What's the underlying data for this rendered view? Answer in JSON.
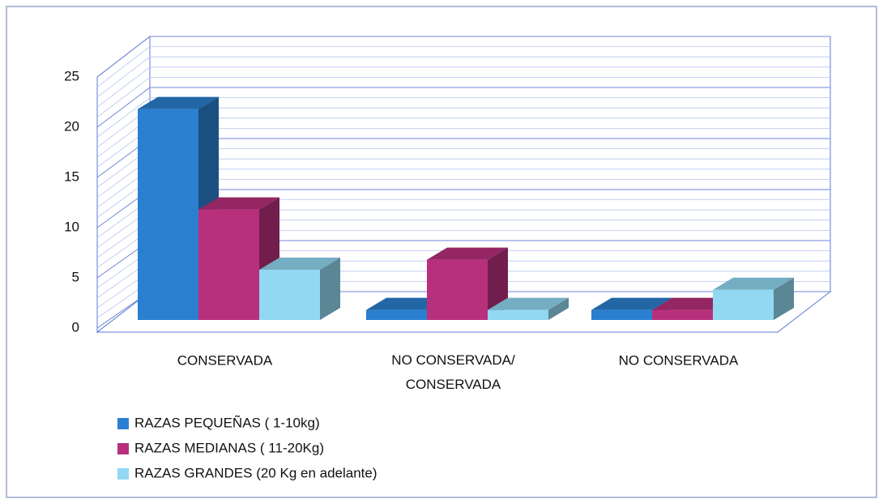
{
  "chart_data": {
    "type": "bar3d",
    "categories": [
      "CONSERVADA",
      "NO CONSERVADA/ CONSERVADA",
      "NO CONSERVADA"
    ],
    "series": [
      {
        "name": "RAZAS PEQUEÑAS ( 1-10kg)",
        "color": "#2b7fd0",
        "values": [
          21,
          1,
          1
        ]
      },
      {
        "name": "RAZAS MEDIANAS ( 11-20Kg)",
        "color": "#b8307c",
        "values": [
          11,
          6,
          1
        ]
      },
      {
        "name": "RAZAS GRANDES (20 Kg en adelante)",
        "color": "#92d8f2",
        "values": [
          5,
          1,
          3
        ]
      }
    ],
    "ylim": [
      0,
      25
    ],
    "yticks": [
      0,
      5,
      10,
      15,
      20,
      25
    ],
    "grid": true,
    "legend": "bottom-left"
  }
}
